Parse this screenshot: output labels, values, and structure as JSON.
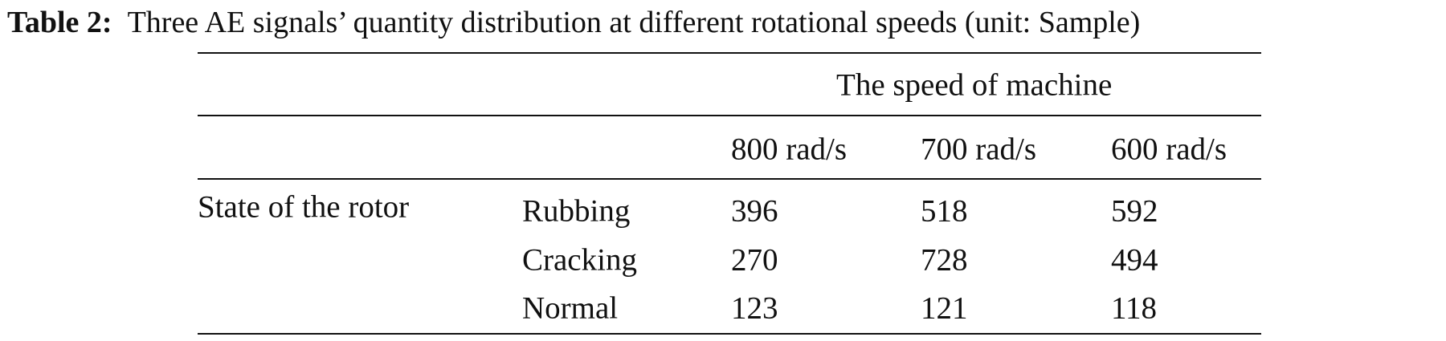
{
  "caption": {
    "label": "Table 2:",
    "text": "Three AE signals’ quantity distribution at different rotational speeds (unit: Sample)"
  },
  "table": {
    "spanner": "The speed of machine",
    "columns": [
      "800 rad/s",
      "700 rad/s",
      "600 rad/s"
    ],
    "row_group": "State of the rotor",
    "rows": [
      {
        "label": "Rubbing",
        "values": [
          396,
          518,
          592
        ]
      },
      {
        "label": "Cracking",
        "values": [
          270,
          728,
          494
        ]
      },
      {
        "label": "Normal",
        "values": [
          123,
          121,
          118
        ]
      }
    ]
  }
}
